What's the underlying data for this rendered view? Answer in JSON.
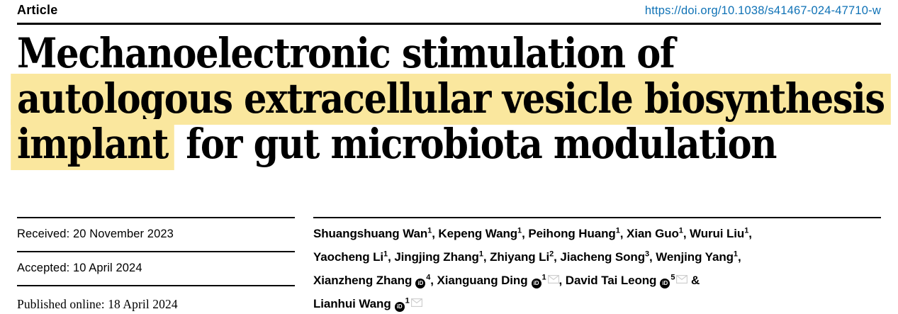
{
  "colors": {
    "highlight": "#fae79e",
    "link_blue": "#0f72b6",
    "rule_black": "#000000",
    "mail_icon_gray": "#cfcfcf"
  },
  "header": {
    "kicker": "Article",
    "doi_link": "https://doi.org/10.1038/s41467-024-47710-w"
  },
  "title": {
    "lines": [
      {
        "segments": [
          {
            "text": "Mechanoelectronic stimulation of",
            "highlight": false
          }
        ]
      },
      {
        "segments": [
          {
            "text": "autologous extracellular vesicle biosynthesis",
            "highlight": true
          }
        ]
      },
      {
        "segments": [
          {
            "text": "implant",
            "highlight": true
          },
          {
            "text": " for gut microbiota modulation",
            "highlight": false
          }
        ]
      }
    ]
  },
  "dates": {
    "received": "Received: 20 November 2023",
    "accepted": "Accepted: 10 April 2024",
    "published": "Published online: 18 April 2024"
  },
  "authors": {
    "orcid_icon_label": "iD",
    "lines": [
      [
        {
          "t": "Shuangshuang Wan"
        },
        {
          "sup": "1"
        },
        {
          "t": ", Kepeng Wang"
        },
        {
          "sup": "1"
        },
        {
          "t": ", Peihong Huang"
        },
        {
          "sup": "1"
        },
        {
          "t": ", Xian Guo"
        },
        {
          "sup": "1"
        },
        {
          "t": ", Wurui Liu"
        },
        {
          "sup": "1"
        },
        {
          "t": ","
        }
      ],
      [
        {
          "t": "Yaocheng Li"
        },
        {
          "sup": "1"
        },
        {
          "t": ", Jingjing Zhang"
        },
        {
          "sup": "1"
        },
        {
          "t": ", Zhiyang Li"
        },
        {
          "sup": "2"
        },
        {
          "t": ", Jiacheng Song"
        },
        {
          "sup": "3"
        },
        {
          "t": ", Wenjing Yang"
        },
        {
          "sup": "1"
        },
        {
          "t": ","
        }
      ],
      [
        {
          "t": "Xianzheng Zhang"
        },
        {
          "icon": "orcid"
        },
        {
          "sup": "4"
        },
        {
          "t": ", Xianguang Ding"
        },
        {
          "icon": "orcid"
        },
        {
          "sup": "1"
        },
        {
          "icon": "email"
        },
        {
          "t": ", David Tai Leong"
        },
        {
          "icon": "orcid"
        },
        {
          "sup": "5"
        },
        {
          "icon": "email"
        },
        {
          "t": " &"
        }
      ],
      [
        {
          "t": "Lianhui Wang"
        },
        {
          "icon": "orcid"
        },
        {
          "sup": "1"
        },
        {
          "icon": "email"
        }
      ]
    ]
  }
}
